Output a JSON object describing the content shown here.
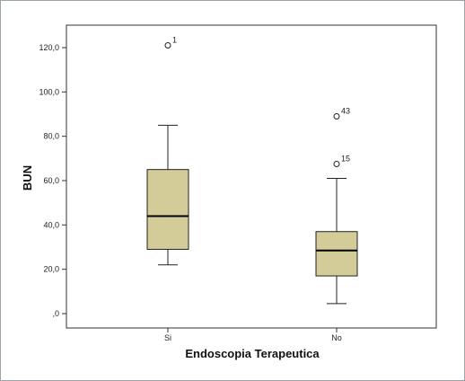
{
  "chart_data": {
    "type": "boxplot",
    "xlabel": "Endoscopia Terapeutica",
    "ylabel": "BUN",
    "ylim": [
      0,
      130
    ],
    "y_ticks": [
      {
        "value": 0,
        "label": ",0"
      },
      {
        "value": 20,
        "label": "20,0"
      },
      {
        "value": 40,
        "label": "40,0"
      },
      {
        "value": 60,
        "label": "60,0"
      },
      {
        "value": 80,
        "label": "80,0"
      },
      {
        "value": 100,
        "label": "100,0"
      },
      {
        "value": 120,
        "label": "120,0"
      }
    ],
    "grid": false,
    "categories": [
      "Si",
      "No"
    ],
    "boxes": [
      {
        "category": "Si",
        "whisker_low": 22,
        "q1": 29,
        "median": 44,
        "q3": 65,
        "whisker_high": 85,
        "outliers": [
          {
            "value": 121,
            "label": "1"
          }
        ]
      },
      {
        "category": "No",
        "whisker_low": 4.5,
        "q1": 17,
        "median": 28.5,
        "q3": 37,
        "whisker_high": 61,
        "outliers": [
          {
            "value": 89,
            "label": "43"
          },
          {
            "value": 67.5,
            "label": "15"
          }
        ]
      }
    ],
    "colors": {
      "box_fill": "#d4cc98",
      "box_stroke": "#222222",
      "plot_background": "#ffffff",
      "frame": "#9aa3a8"
    }
  }
}
